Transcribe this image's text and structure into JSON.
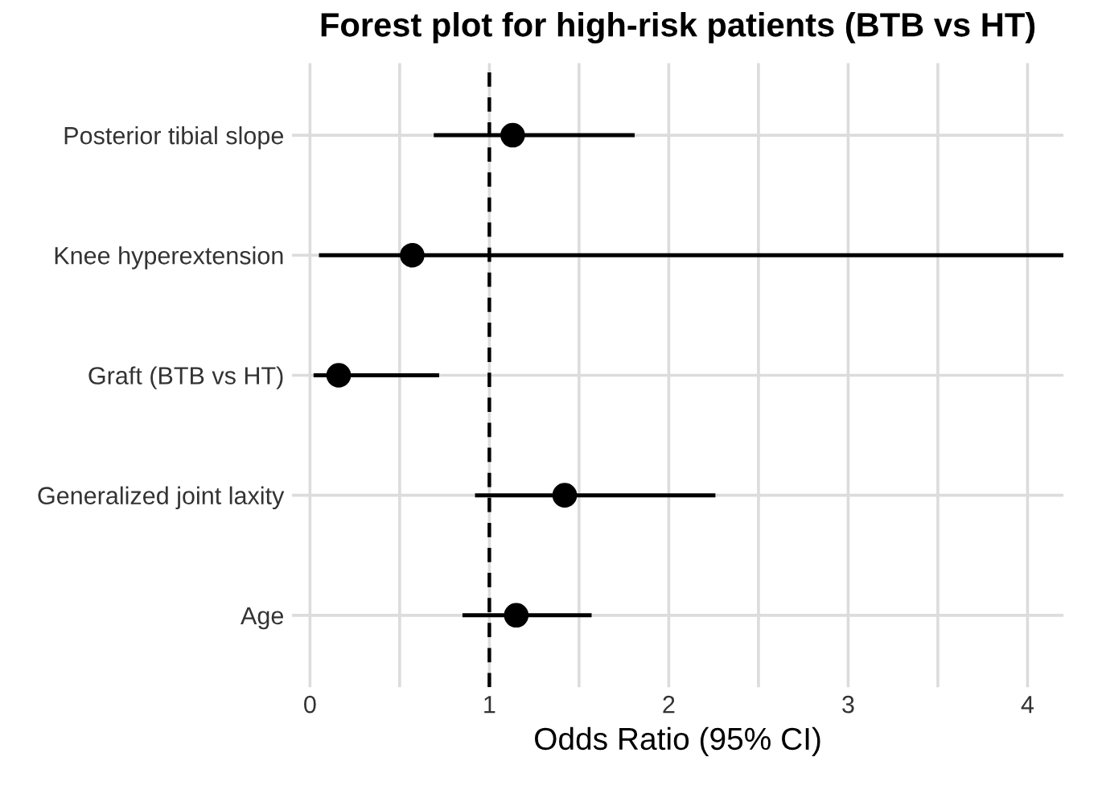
{
  "chart_data": {
    "type": "scatter",
    "orientation": "horizontal",
    "title": "Forest plot for high-risk patients (BTB vs HT)",
    "xlabel": "Odds Ratio (95% CI)",
    "categories": [
      "Posterior tibial slope",
      "Knee hyperextension",
      "Graft (BTB vs HT)",
      "Generalized joint laxity",
      "Age"
    ],
    "color": "#000000",
    "values": [
      1.13,
      0.57,
      0.16,
      1.42,
      1.15
    ],
    "errors": [
      [
        0.69,
        1.81
      ],
      [
        0.05,
        4.2
      ],
      [
        0.02,
        0.72
      ],
      [
        0.92,
        2.26
      ],
      [
        0.85,
        1.57
      ]
    ],
    "xlim": [
      -0.1,
      4.2
    ],
    "xticks": [
      0,
      {
        "value": 0.5,
        "label": null
      },
      1,
      {
        "value": 1.5,
        "label": null
      },
      2,
      {
        "value": 2.5,
        "label": null
      },
      3,
      {
        "value": 3.5,
        "label": null
      },
      4
    ],
    "ref_lines": [
      {
        "axis": "x",
        "value": 1,
        "color": "#000000",
        "line_style": "dashed"
      }
    ],
    "grid": true,
    "marker": "circle"
  }
}
